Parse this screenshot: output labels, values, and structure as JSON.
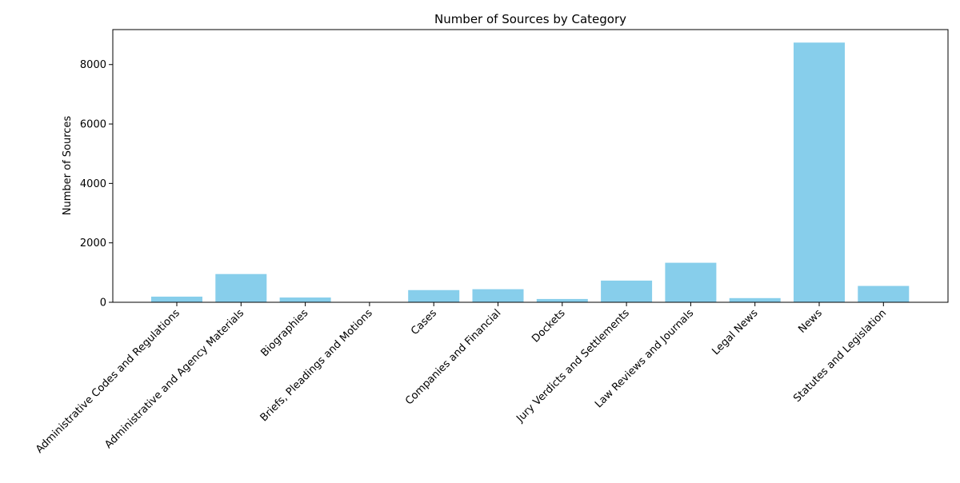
{
  "chart_data": {
    "type": "bar",
    "title": "Number of Sources by Category",
    "xlabel": "",
    "ylabel": "Number of Sources",
    "categories": [
      "Administrative Codes and Regulations",
      "Administrative and Agency Materials",
      "Biographies",
      "Briefs, Pleadings and Motions",
      "Cases",
      "Companies and Financial",
      "Dockets",
      "Jury Verdicts and Settlements",
      "Law Reviews and Journals",
      "Legal News",
      "News",
      "Statutes and Legislation"
    ],
    "values": [
      190,
      950,
      160,
      5,
      410,
      440,
      110,
      730,
      1330,
      140,
      8740,
      550
    ],
    "ylim": [
      0,
      9177
    ],
    "yticks": [
      0,
      2000,
      4000,
      6000,
      8000
    ],
    "bar_color": "#87ceeb",
    "grid": false,
    "legend": "none"
  }
}
